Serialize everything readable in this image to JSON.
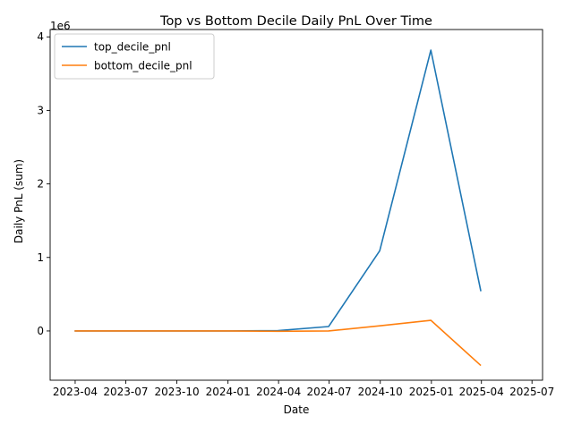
{
  "chart_data": {
    "type": "line",
    "title": "Top vs Bottom Decile Daily PnL Over Time",
    "xlabel": "Date",
    "ylabel": "Daily PnL (sum)",
    "y_offset_label": "1e6",
    "y_scale_factor": 1000000,
    "grid": false,
    "legend_position": "upper-left",
    "x_ticks": [
      {
        "value": "2023-04-01",
        "label": "2023-04"
      },
      {
        "value": "2023-07-01",
        "label": "2023-07"
      },
      {
        "value": "2023-10-01",
        "label": "2023-10"
      },
      {
        "value": "2024-01-01",
        "label": "2024-01"
      },
      {
        "value": "2024-04-01",
        "label": "2024-04"
      },
      {
        "value": "2024-07-01",
        "label": "2024-07"
      },
      {
        "value": "2024-10-01",
        "label": "2024-10"
      },
      {
        "value": "2025-01-01",
        "label": "2025-01"
      },
      {
        "value": "2025-04-01",
        "label": "2025-04"
      },
      {
        "value": "2025-07-01",
        "label": "2025-07"
      }
    ],
    "y_ticks": [
      {
        "value": 0,
        "label": "0"
      },
      {
        "value": 1000000,
        "label": "1"
      },
      {
        "value": 2000000,
        "label": "2"
      },
      {
        "value": 3000000,
        "label": "3"
      },
      {
        "value": 4000000,
        "label": "4"
      }
    ],
    "xlim": [
      "2023-02-15",
      "2025-07-20"
    ],
    "ylim": [
      -670000,
      4100000
    ],
    "series": [
      {
        "name": "top_decile_pnl",
        "color": "#1f77b4",
        "points": [
          {
            "x": "2023-03-31",
            "y": 0
          },
          {
            "x": "2023-12-31",
            "y": 0
          },
          {
            "x": "2024-03-31",
            "y": 5000
          },
          {
            "x": "2024-06-30",
            "y": 60000
          },
          {
            "x": "2024-09-30",
            "y": 1090000
          },
          {
            "x": "2024-12-31",
            "y": 3820000
          },
          {
            "x": "2025-03-31",
            "y": 540000
          }
        ]
      },
      {
        "name": "bottom_decile_pnl",
        "color": "#ff7f0e",
        "points": [
          {
            "x": "2023-03-31",
            "y": 0
          },
          {
            "x": "2023-12-31",
            "y": 0
          },
          {
            "x": "2024-03-31",
            "y": -5000
          },
          {
            "x": "2024-06-30",
            "y": 0
          },
          {
            "x": "2024-09-30",
            "y": 70000
          },
          {
            "x": "2024-12-31",
            "y": 145000
          },
          {
            "x": "2025-03-31",
            "y": -470000
          }
        ]
      }
    ]
  }
}
